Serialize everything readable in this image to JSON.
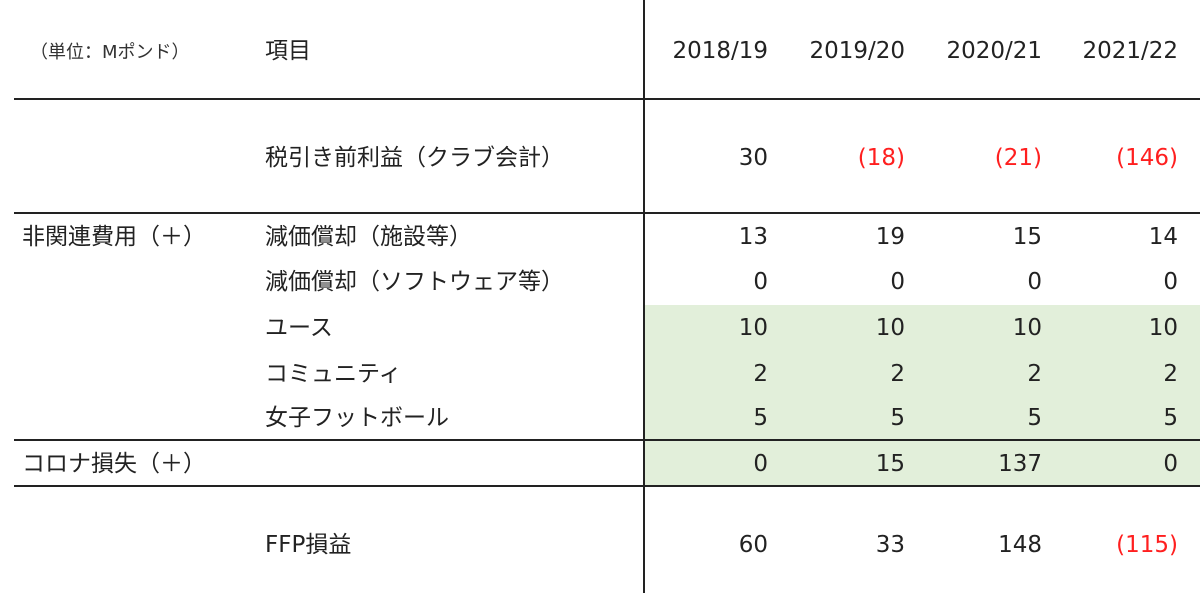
{
  "table": {
    "unit_label": "（単位：Mポンド）",
    "item_header": "項目",
    "years": [
      "2018/19",
      "2019/20",
      "2020/21",
      "2021/22"
    ],
    "colors": {
      "negative_text": "#ff1f1f",
      "highlight_bg": "#e2efda",
      "rule": "#222222"
    },
    "rows": [
      {
        "group": "",
        "item": "税引き前利益（クラブ会計）",
        "values": [
          "30",
          "(18)",
          "(21)",
          "(146)"
        ],
        "negative": [
          false,
          true,
          true,
          true
        ]
      },
      {
        "group": "非関連費用（＋）",
        "item": "減価償却（施設等）",
        "values": [
          "13",
          "19",
          "15",
          "14"
        ],
        "negative": [
          false,
          false,
          false,
          false
        ]
      },
      {
        "group": "",
        "item": "減価償却（ソフトウェア等）",
        "values": [
          "0",
          "0",
          "0",
          "0"
        ],
        "negative": [
          false,
          false,
          false,
          false
        ]
      },
      {
        "group": "",
        "item": "ユース",
        "values": [
          "10",
          "10",
          "10",
          "10"
        ],
        "negative": [
          false,
          false,
          false,
          false
        ]
      },
      {
        "group": "",
        "item": "コミュニティ",
        "values": [
          "2",
          "2",
          "2",
          "2"
        ],
        "negative": [
          false,
          false,
          false,
          false
        ]
      },
      {
        "group": "",
        "item": "女子フットボール",
        "values": [
          "5",
          "5",
          "5",
          "5"
        ],
        "negative": [
          false,
          false,
          false,
          false
        ]
      },
      {
        "group": "コロナ損失（＋）",
        "item": "",
        "values": [
          "0",
          "15",
          "137",
          "0"
        ],
        "negative": [
          false,
          false,
          false,
          false
        ]
      },
      {
        "group": "",
        "item": "FFP損益",
        "values": [
          "60",
          "33",
          "148",
          "(115)"
        ],
        "negative": [
          false,
          false,
          false,
          true
        ]
      }
    ]
  }
}
